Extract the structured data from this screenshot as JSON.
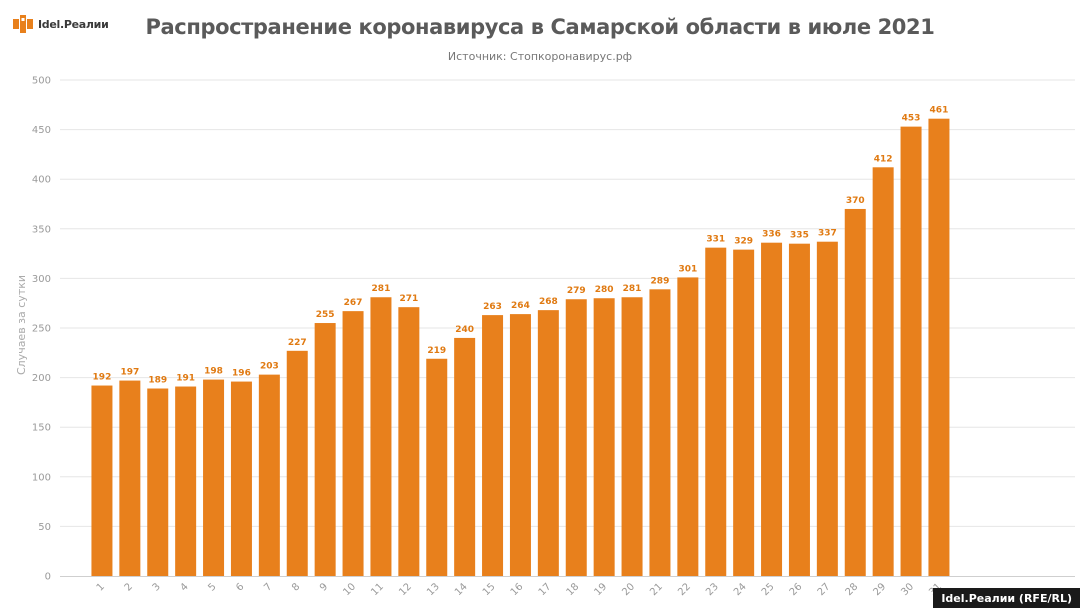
{
  "logo": {
    "text": "Idel.Реалии"
  },
  "footer": {
    "credit": "Idel.Реалии (RFE/RL)"
  },
  "chart_data": {
    "type": "bar",
    "title": "Распространение коронавируса в Самарской области в июле 2021",
    "subtitle": "Источник: Стопкоронавирус.рф",
    "xlabel": "",
    "ylabel": "Случаев за сутки",
    "ylim": [
      0,
      500
    ],
    "yticks": [
      0,
      50,
      100,
      150,
      200,
      250,
      300,
      350,
      400,
      450,
      500
    ],
    "grid": true,
    "bar_color": "#e8801c",
    "label_color": "#e07a12",
    "categories": [
      "1",
      "2",
      "3",
      "4",
      "5",
      "6",
      "7",
      "8",
      "9",
      "10",
      "11",
      "12",
      "13",
      "14",
      "15",
      "16",
      "17",
      "18",
      "19",
      "20",
      "21",
      "22",
      "23",
      "24",
      "25",
      "26",
      "27",
      "28",
      "29",
      "30",
      "31"
    ],
    "values": [
      192,
      197,
      189,
      191,
      198,
      196,
      203,
      227,
      255,
      267,
      281,
      271,
      219,
      240,
      263,
      264,
      268,
      279,
      280,
      281,
      289,
      301,
      331,
      329,
      336,
      335,
      337,
      370,
      412,
      453,
      461
    ]
  }
}
